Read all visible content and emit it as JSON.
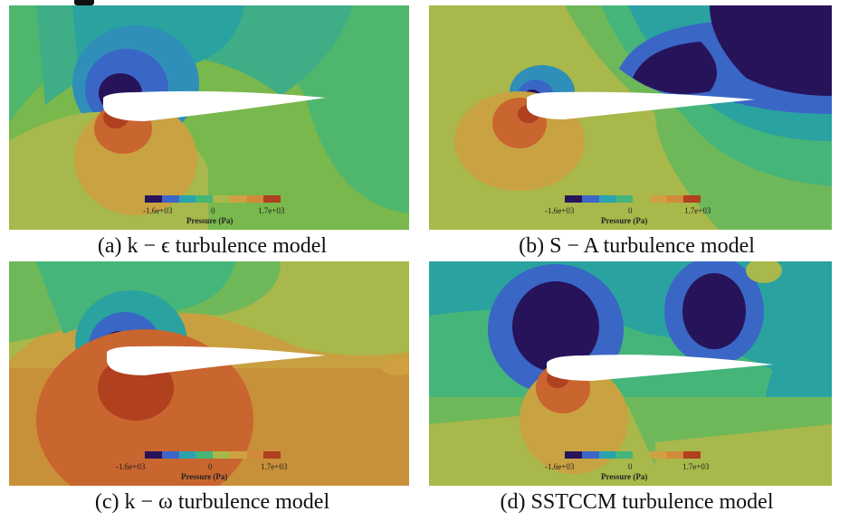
{
  "figure": {
    "colors": {
      "background_green": "#78b84a",
      "blue_dark": "#27135a",
      "blue": "#3c66c8",
      "cyan": "#29a3b0",
      "green": "#45b57a",
      "yellow": "#a8b84a",
      "orange": "#d08a3a",
      "red": "#b0401e"
    },
    "colorbar": {
      "min_label": "-1.6e+03",
      "mid_label": "0",
      "max_label": "1.7e+03",
      "title": "Pressure (Pa)"
    },
    "panels": [
      {
        "caption": "(a) k − ϵ turbulence model"
      },
      {
        "caption": "(b) S − A turbulence model"
      },
      {
        "caption": "(c) k − ω turbulence model"
      },
      {
        "caption": "(d) SSTCCM turbulence model"
      }
    ]
  }
}
